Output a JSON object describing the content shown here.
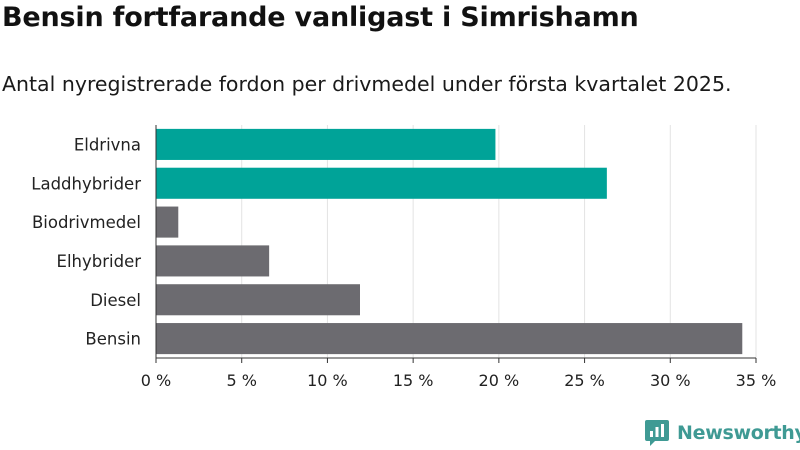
{
  "title": "Bensin fortfarande vanligast i Simrishamn",
  "subtitle": "Antal nyregistrerade fordon per drivmedel under första kvartalet 2025.",
  "brand": {
    "name": "Newsworthy"
  },
  "colors": {
    "highlight": "#00a398",
    "default": "#6c6b70",
    "grid": "#e3e3e3",
    "axis": "#333333",
    "brand": "#3f9a94"
  },
  "chart_data": {
    "type": "bar",
    "orientation": "horizontal",
    "categories": [
      "Eldrivna",
      "Laddhybrider",
      "Biodrivmedel",
      "Elhybrider",
      "Diesel",
      "Bensin"
    ],
    "values": [
      19.8,
      26.3,
      1.3,
      6.6,
      11.9,
      34.2
    ],
    "highlighted": [
      true,
      true,
      false,
      false,
      false,
      false
    ],
    "x_ticks": [
      0,
      5,
      10,
      15,
      20,
      25,
      30,
      35
    ],
    "x_tick_labels": [
      "0 %",
      "5 %",
      "10 %",
      "15 %",
      "20 %",
      "25 %",
      "30 %",
      "35 %"
    ],
    "xlim": [
      0,
      35
    ],
    "grid": true,
    "legend": "none"
  }
}
